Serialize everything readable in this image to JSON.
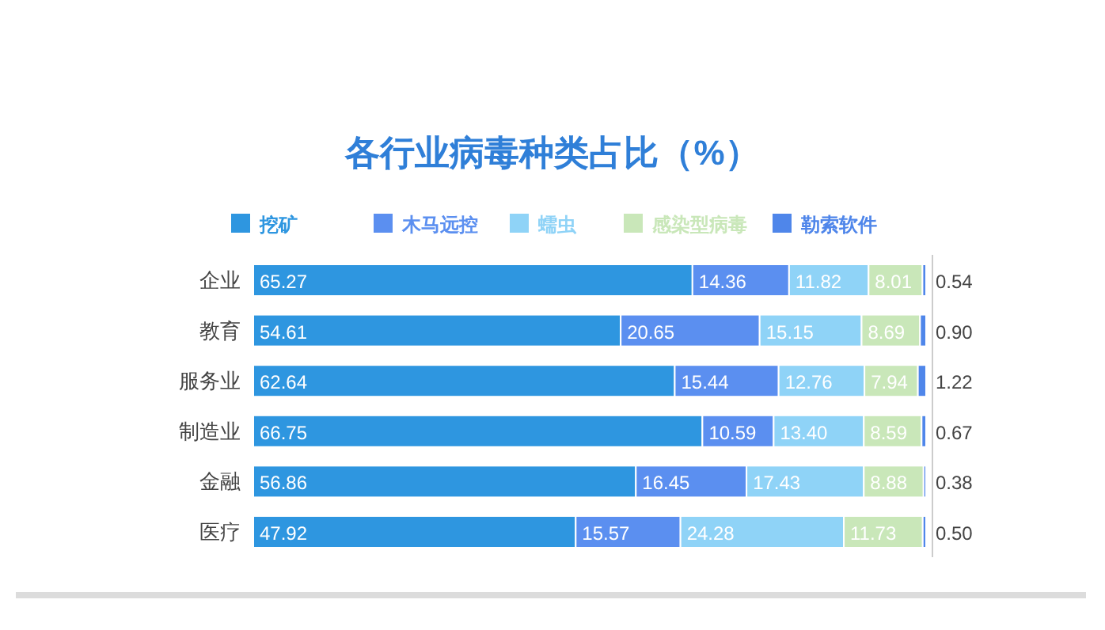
{
  "chart_data": {
    "type": "bar",
    "title": "各行业病毒种类占比（%）",
    "orientation": "horizontal",
    "stacked": true,
    "legend": "top",
    "categories": [
      "企业",
      "教育",
      "服务业",
      "制造业",
      "金融",
      "医疗"
    ],
    "series": [
      {
        "name": "挖矿",
        "color": "#2e96e0",
        "values": [
          65.27,
          54.61,
          62.64,
          66.75,
          56.86,
          47.92
        ],
        "value_labels": [
          "65.27",
          "54.61",
          "62.64",
          "66.75",
          "56.86",
          "47.92"
        ]
      },
      {
        "name": "木马远控",
        "color": "#5b8ff0",
        "values": [
          14.36,
          20.65,
          15.44,
          10.59,
          16.45,
          15.57
        ],
        "value_labels": [
          "14.36",
          "20.65",
          "15.44",
          "10.59",
          "16.45",
          "15.57"
        ]
      },
      {
        "name": "蠕虫",
        "color": "#8fd3f7",
        "values": [
          11.82,
          15.15,
          12.76,
          13.4,
          17.43,
          24.28
        ],
        "value_labels": [
          "11.82",
          "15.15",
          "12.76",
          "13.40",
          "17.43",
          "24.28"
        ]
      },
      {
        "name": "感染型病毒",
        "color": "#c9e7b9",
        "values": [
          8.01,
          8.69,
          7.94,
          8.59,
          8.88,
          11.73
        ],
        "value_labels": [
          "8.01",
          "8.69",
          "7.94",
          "8.59",
          "8.88",
          "11.73"
        ]
      },
      {
        "name": "勒索软件",
        "color": "#4f86ea",
        "values": [
          0.54,
          0.9,
          1.22,
          0.67,
          0.38,
          0.5
        ],
        "value_labels": [
          "0.54",
          "0.90",
          "1.22",
          "0.67",
          "0.38",
          "0.50"
        ]
      }
    ]
  }
}
